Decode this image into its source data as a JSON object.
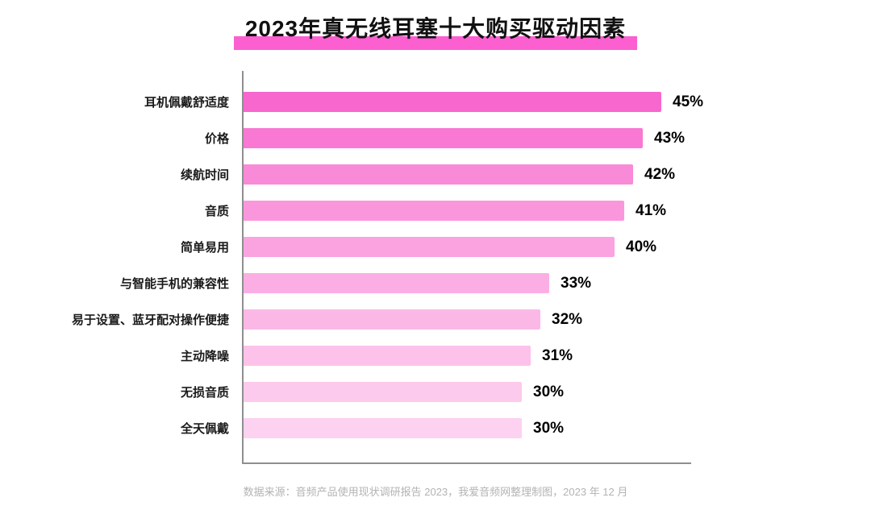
{
  "chart_data": {
    "type": "bar",
    "orientation": "horizontal",
    "title": "2023年真无线耳塞十大购买驱动因素",
    "categories": [
      "耳机佩戴舒适度",
      "价格",
      "续航时间",
      "音质",
      "简单易用",
      "与智能手机的兼容性",
      "易于设置、蓝牙配对操作便捷",
      "主动降噪",
      "无损音质",
      "全天佩戴"
    ],
    "values": [
      45,
      43,
      42,
      41,
      40,
      33,
      32,
      31,
      30,
      30
    ],
    "value_suffix": "%",
    "xlabel": "",
    "ylabel": "",
    "xlim": [
      0,
      47
    ],
    "grid": false,
    "legend": false,
    "bar_colors": [
      "#f767ce",
      "#f878d3",
      "#f98ad8",
      "#fa97dc",
      "#faa3e0",
      "#fbaee4",
      "#fbb8e7",
      "#fcc2ea",
      "#fccaed",
      "#fdd1f0"
    ]
  },
  "colors": {
    "title_highlight": "#fb5fd0",
    "axis": "#8f8f8f",
    "value_label": "#000000",
    "footer_text": "#b3b3b3"
  },
  "footer": {
    "source": "数据来源：音频产品使用现状调研报告 2023，我爱音频网整理制图，2023 年 12 月"
  }
}
